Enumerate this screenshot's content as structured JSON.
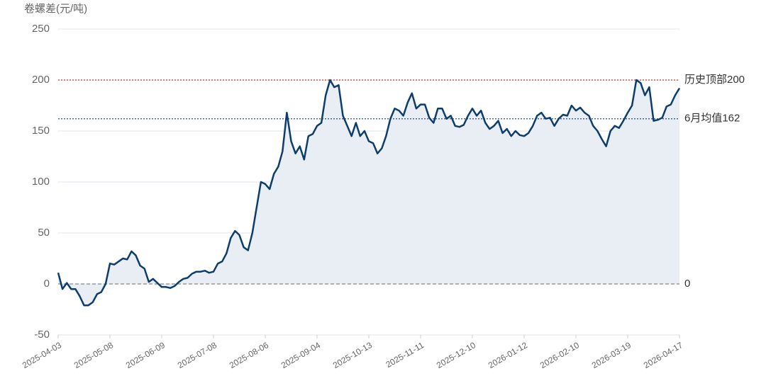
{
  "chart_data": {
    "type": "line",
    "y_axis_label": "卷螺差(元/吨)",
    "categories": [
      "2025-04-03",
      null,
      null,
      null,
      null,
      null,
      null,
      null,
      null,
      null,
      null,
      null,
      "2025-05-08",
      null,
      null,
      null,
      null,
      null,
      null,
      null,
      null,
      null,
      null,
      null,
      "2025-06-09",
      null,
      null,
      null,
      null,
      null,
      null,
      null,
      null,
      null,
      null,
      null,
      "2025-07-08",
      null,
      null,
      null,
      null,
      null,
      null,
      null,
      null,
      null,
      null,
      null,
      "2025-08-06",
      null,
      null,
      null,
      null,
      null,
      null,
      null,
      null,
      null,
      null,
      null,
      "2025-09-04",
      null,
      null,
      null,
      null,
      null,
      null,
      null,
      null,
      null,
      null,
      null,
      "2025-10-13",
      null,
      null,
      null,
      null,
      null,
      null,
      null,
      null,
      null,
      null,
      null,
      "2025-11-11",
      null,
      null,
      null,
      null,
      null,
      null,
      null,
      null,
      null,
      null,
      null,
      "2025-12-10",
      null,
      null,
      null,
      null,
      null,
      null,
      null,
      null,
      null,
      null,
      null,
      "2026-01-12",
      null,
      null,
      null,
      null,
      null,
      null,
      null,
      null,
      null,
      null,
      null,
      "2026-02-10",
      null,
      null,
      null,
      null,
      null,
      null,
      null,
      null,
      null,
      null,
      null,
      "2026-03-19",
      null,
      null,
      null,
      null,
      null,
      null,
      null,
      null,
      null,
      null,
      null,
      "2026-04-17"
    ],
    "series": [
      {
        "color": "#0d3d6e",
        "fill": "#e9eef4",
        "values": [
          11,
          -5,
          1,
          -5,
          -5,
          -12,
          -21,
          -21,
          -18,
          -10,
          -8,
          0,
          20,
          19,
          22,
          25,
          24,
          32,
          28,
          18,
          15,
          2,
          5,
          1,
          -3,
          -3,
          -4,
          -2,
          2,
          5,
          6,
          10,
          12,
          12,
          13,
          11,
          12,
          20,
          22,
          30,
          45,
          52,
          48,
          36,
          33,
          50,
          75,
          100,
          98,
          93,
          108,
          115,
          130,
          168,
          140,
          128,
          135,
          122,
          145,
          147,
          155,
          158,
          185,
          200,
          193,
          195,
          165,
          155,
          145,
          158,
          145,
          150,
          140,
          138,
          128,
          133,
          145,
          162,
          172,
          170,
          165,
          178,
          187,
          172,
          176,
          176,
          163,
          158,
          172,
          172,
          162,
          165,
          155,
          154,
          156,
          165,
          172,
          165,
          170,
          158,
          152,
          155,
          160,
          148,
          152,
          145,
          150,
          146,
          145,
          148,
          155,
          165,
          168,
          162,
          163,
          155,
          162,
          166,
          165,
          175,
          170,
          173,
          168,
          165,
          155,
          150,
          142,
          135,
          150,
          155,
          153,
          160,
          168,
          175,
          200,
          197,
          185,
          193,
          160,
          161,
          163,
          174,
          176,
          185,
          192
        ]
      }
    ],
    "ylim": [
      -50,
      250
    ],
    "yticks": [
      -50,
      0,
      50,
      100,
      150,
      200,
      250
    ],
    "grid": true,
    "reference_lines": [
      {
        "value": 200,
        "label": "历史顶部200",
        "color": "#c0392b",
        "dash": "2,2"
      },
      {
        "value": 162,
        "label": "6月均值162",
        "color": "#1f4e8c",
        "dash": "2,2"
      },
      {
        "value": 0,
        "label": "0",
        "color": "#888888",
        "dash": "5,3"
      }
    ]
  }
}
